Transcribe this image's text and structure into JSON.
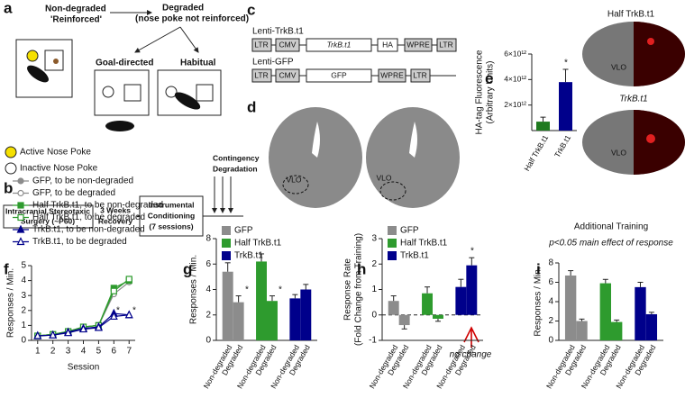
{
  "diagrams": {
    "a": {
      "label": "a",
      "reinforced": [
        "Non-degraded",
        "'Reinforced'"
      ],
      "degraded": [
        "Degraded",
        "(nose poke not reinforced)"
      ],
      "goal": "Goal-directed",
      "habit": "Habitual",
      "active": "Active Nose Poke",
      "inactive": "Inactive Nose Poke"
    },
    "b": {
      "label": "b",
      "surgery": [
        "Intracranial Stereotaxic",
        "Surgery (~P60)"
      ],
      "recovery": [
        "3 Weeks",
        "Recovery"
      ],
      "conditioning": [
        "Instrumental",
        "Conditioning",
        "(7 sessions)"
      ],
      "degradation": [
        "Contingency",
        "Degradation"
      ]
    },
    "c": {
      "label": "c",
      "trkb": {
        "name": "Lenti-TrkB.t1",
        "elements": [
          "LTR",
          "CMV",
          "TrkB.t1",
          "HA",
          "WPRE",
          "LTR"
        ]
      },
      "gfp": {
        "name": "Lenti-GFP",
        "elements": [
          "LTR",
          "CMV",
          "GFP",
          "WPRE",
          "LTR"
        ]
      }
    },
    "d": {
      "label": "d",
      "region": "VLO"
    },
    "images": {
      "half": "Half TrkB.t1",
      "full": "TrkB.t1",
      "region": "VLO"
    }
  },
  "chart_data": [
    {
      "type": "bar",
      "panel": "e",
      "ylabel": [
        "HA-tag Fluorescence",
        "(Arbitrary Units)"
      ],
      "categories": [
        "Half TrkB.t1",
        "TrkB.t1"
      ],
      "values": [
        700000000000.0,
        3800000000000.0
      ],
      "errors": [
        350000000000.0,
        1000000000000.0
      ],
      "colors": [
        "#1f7a1f",
        "#00008b"
      ],
      "ylim": [
        0,
        6000000000000.0
      ],
      "yticks": [
        {
          "value": 2000000000000.0,
          "label": "2×10¹²"
        },
        {
          "value": 4000000000000.0,
          "label": "4×10¹²"
        },
        {
          "value": 6000000000000.0,
          "label": "6×10¹²"
        }
      ],
      "annotations": [
        "*"
      ]
    },
    {
      "type": "line",
      "panel": "f",
      "xlabel": "Session",
      "ylabel": [
        "Responses / Min."
      ],
      "x": [
        1,
        2,
        3,
        4,
        5,
        6,
        7
      ],
      "xlim": [
        0.6,
        7.4
      ],
      "xticks": [
        1,
        2,
        3,
        4,
        5,
        6,
        7
      ],
      "ylim": [
        0,
        5
      ],
      "yticks": [
        0,
        1,
        2,
        3,
        4,
        5
      ],
      "series": [
        {
          "name": "GFP, to be non-degraded",
          "color": "#8c8c8c",
          "marker": "circle",
          "filled": true,
          "values": [
            0.3,
            0.4,
            0.6,
            0.9,
            1.0,
            3.3,
            4.1
          ]
        },
        {
          "name": "GFP, to be degraded",
          "color": "#8c8c8c",
          "marker": "circle",
          "filled": false,
          "values": [
            0.3,
            0.4,
            0.6,
            0.9,
            1.0,
            3.1,
            3.9
          ]
        },
        {
          "name": "Half TrkB.t1, to be non-degraded",
          "color": "#2e9b2e",
          "marker": "square",
          "filled": true,
          "values": [
            0.3,
            0.4,
            0.6,
            0.9,
            1.0,
            3.5,
            4.0
          ]
        },
        {
          "name": "Half TrkB.t1, to be degraded",
          "color": "#2e9b2e",
          "marker": "square",
          "filled": false,
          "values": [
            0.3,
            0.4,
            0.6,
            0.9,
            1.0,
            3.3,
            4.1
          ]
        },
        {
          "name": "TrkB.t1, to be non-degraded",
          "color": "#00008b",
          "marker": "triangle",
          "filled": true,
          "values": [
            0.3,
            0.35,
            0.55,
            0.8,
            0.9,
            1.8,
            1.7
          ]
        },
        {
          "name": "TrkB.t1, to be degraded",
          "color": "#00008b",
          "marker": "triangle",
          "filled": false,
          "values": [
            0.3,
            0.35,
            0.5,
            0.75,
            0.85,
            1.6,
            1.7
          ]
        }
      ],
      "annotations": [
        "*",
        "*"
      ]
    },
    {
      "type": "bar",
      "panel": "g",
      "ylabel": [
        "Responses / Min."
      ],
      "categories": [
        "Non-degraded",
        "Degraded"
      ],
      "ylim": [
        0,
        8
      ],
      "yticks": [
        0,
        2,
        4,
        6,
        8
      ],
      "legend": true,
      "series": [
        {
          "name": "GFP",
          "color": "#8c8c8c",
          "values": [
            5.4,
            3.0
          ],
          "errors": [
            0.7,
            0.5
          ]
        },
        {
          "name": "Half TrkB.t1",
          "color": "#2e9b2e",
          "values": [
            6.2,
            3.1
          ],
          "errors": [
            0.6,
            0.4
          ]
        },
        {
          "name": "TrkB.t1",
          "color": "#00008b",
          "values": [
            3.3,
            4.0
          ],
          "errors": [
            0.3,
            0.4
          ]
        }
      ],
      "annotations": [
        "*",
        "*"
      ]
    },
    {
      "type": "bar",
      "panel": "h",
      "ylabel": [
        "Response Rate",
        "(Fold Change from Training)"
      ],
      "categories": [
        "Non-degraded",
        "Degraded"
      ],
      "ylim": [
        -1,
        3
      ],
      "yticks": [
        -1,
        0,
        1,
        2,
        3
      ],
      "legend": true,
      "series": [
        {
          "name": "GFP",
          "color": "#8c8c8c",
          "values": [
            0.55,
            -0.4
          ],
          "errors": [
            0.2,
            0.15
          ]
        },
        {
          "name": "Half TrkB.t1",
          "color": "#2e9b2e",
          "values": [
            0.85,
            -0.15
          ],
          "errors": [
            0.25,
            0.1
          ]
        },
        {
          "name": "TrkB.t1",
          "color": "#00008b",
          "values": [
            1.1,
            1.95
          ],
          "errors": [
            0.3,
            0.3
          ]
        }
      ],
      "annotations": [
        "*",
        "no change"
      ]
    },
    {
      "type": "bar",
      "panel": "i",
      "title": "Additional Training",
      "subtitle": "p<0.05 main effect of response",
      "ylabel": [
        "Responses / Min."
      ],
      "categories": [
        "Non-degraded",
        "Degraded"
      ],
      "ylim": [
        0,
        8
      ],
      "yticks": [
        0,
        2,
        4,
        6,
        8
      ],
      "series": [
        {
          "color": "#8c8c8c",
          "values": [
            6.7,
            2.0
          ],
          "errors": [
            0.5,
            0.2
          ]
        },
        {
          "color": "#2e9b2e",
          "values": [
            5.9,
            1.9
          ],
          "errors": [
            0.4,
            0.2
          ]
        },
        {
          "color": "#00008b",
          "values": [
            5.5,
            2.7
          ],
          "errors": [
            0.5,
            0.2
          ]
        }
      ]
    }
  ]
}
